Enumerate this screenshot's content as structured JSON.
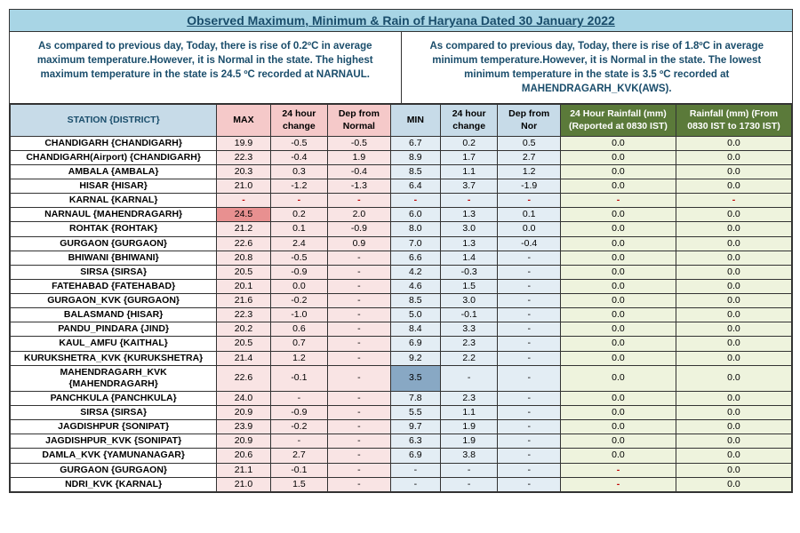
{
  "title": "Observed Maximum, Minimum & Rain of Haryana Dated 30 January 2022",
  "summary_left": "As compared to previous day, Today, there is rise of 0.2ºC in average maximum temperature.However, it is Normal in the state. The highest maximum temperature in the state is 24.5 ºC recorded at NARNAUL.",
  "summary_right": "As compared to previous day, Today, there is rise of 1.8ºC in average minimum temperature.However, it is Normal in the state. The lowest minimum temperature in the state is 3.5 ºC recorded at MAHENDRAGARH_KVK(AWS).",
  "headers": {
    "station": "STATION  {DISTRICT}",
    "max": "MAX",
    "max_chg": "24 hour change",
    "max_dep": "Dep from Normal",
    "min": "MIN",
    "min_chg": "24 hour change",
    "min_dep": "Dep from Nor",
    "rain1": "24 Hour Rainfall (mm) (Reported at 0830 IST)",
    "rain2": "Rainfall (mm) (From 0830 IST to 1730 IST)"
  },
  "highlight": {
    "max_row": 5,
    "min_row": 16
  },
  "rows": [
    {
      "station": "CHANDIGARH {CHANDIGARH}",
      "max": "19.9",
      "maxchg": "-0.5",
      "maxdep": "-0.5",
      "min": "6.7",
      "minchg": "0.2",
      "mindep": "0.5",
      "rain1": "0.0",
      "rain2": "0.0"
    },
    {
      "station": "CHANDIGARH(Airport) {CHANDIGARH}",
      "max": "22.3",
      "maxchg": "-0.4",
      "maxdep": "1.9",
      "min": "8.9",
      "minchg": "1.7",
      "mindep": "2.7",
      "rain1": "0.0",
      "rain2": "0.0"
    },
    {
      "station": "AMBALA {AMBALA}",
      "max": "20.3",
      "maxchg": "0.3",
      "maxdep": "-0.4",
      "min": "8.5",
      "minchg": "1.1",
      "mindep": "1.2",
      "rain1": "0.0",
      "rain2": "0.0"
    },
    {
      "station": "HISAR {HISAR}",
      "max": "21.0",
      "maxchg": "-1.2",
      "maxdep": "-1.3",
      "min": "6.4",
      "minchg": "3.7",
      "mindep": "-1.9",
      "rain1": "0.0",
      "rain2": "0.0"
    },
    {
      "station": "KARNAL {KARNAL}",
      "max": "-",
      "maxchg": "-",
      "maxdep": "-",
      "min": "-",
      "minchg": "-",
      "mindep": "-",
      "rain1": "-",
      "rain2": "-",
      "red": true
    },
    {
      "station": "NARNAUL {MAHENDRAGARH}",
      "max": "24.5",
      "maxchg": "0.2",
      "maxdep": "2.0",
      "min": "6.0",
      "minchg": "1.3",
      "mindep": "0.1",
      "rain1": "0.0",
      "rain2": "0.0"
    },
    {
      "station": "ROHTAK {ROHTAK}",
      "max": "21.2",
      "maxchg": "0.1",
      "maxdep": "-0.9",
      "min": "8.0",
      "minchg": "3.0",
      "mindep": "0.0",
      "rain1": "0.0",
      "rain2": "0.0"
    },
    {
      "station": "GURGAON {GURGAON}",
      "max": "22.6",
      "maxchg": "2.4",
      "maxdep": "0.9",
      "min": "7.0",
      "minchg": "1.3",
      "mindep": "-0.4",
      "rain1": "0.0",
      "rain2": "0.0"
    },
    {
      "station": "BHIWANI {BHIWANI}",
      "max": "20.8",
      "maxchg": "-0.5",
      "maxdep": "-",
      "min": "6.6",
      "minchg": "1.4",
      "mindep": "-",
      "rain1": "0.0",
      "rain2": "0.0"
    },
    {
      "station": "SIRSA {SIRSA}",
      "max": "20.5",
      "maxchg": "-0.9",
      "maxdep": "-",
      "min": "4.2",
      "minchg": "-0.3",
      "mindep": "-",
      "rain1": "0.0",
      "rain2": "0.0"
    },
    {
      "station": "FATEHABAD {FATEHABAD}",
      "max": "20.1",
      "maxchg": "0.0",
      "maxdep": "-",
      "min": "4.6",
      "minchg": "1.5",
      "mindep": "-",
      "rain1": "0.0",
      "rain2": "0.0"
    },
    {
      "station": "GURGAON_KVK {GURGAON}",
      "max": "21.6",
      "maxchg": "-0.2",
      "maxdep": "-",
      "min": "8.5",
      "minchg": "3.0",
      "mindep": "-",
      "rain1": "0.0",
      "rain2": "0.0"
    },
    {
      "station": "BALASMAND {HISAR}",
      "max": "22.3",
      "maxchg": "-1.0",
      "maxdep": "-",
      "min": "5.0",
      "minchg": "-0.1",
      "mindep": "-",
      "rain1": "0.0",
      "rain2": "0.0"
    },
    {
      "station": "PANDU_PINDARA {JIND}",
      "max": "20.2",
      "maxchg": "0.6",
      "maxdep": "-",
      "min": "8.4",
      "minchg": "3.3",
      "mindep": "-",
      "rain1": "0.0",
      "rain2": "0.0"
    },
    {
      "station": "KAUL_AMFU {KAITHAL}",
      "max": "20.5",
      "maxchg": "0.7",
      "maxdep": "-",
      "min": "6.9",
      "minchg": "2.3",
      "mindep": "-",
      "rain1": "0.0",
      "rain2": "0.0"
    },
    {
      "station": "KURUKSHETRA_KVK {KURUKSHETRA}",
      "max": "21.4",
      "maxchg": "1.2",
      "maxdep": "-",
      "min": "9.2",
      "minchg": "2.2",
      "mindep": "-",
      "rain1": "0.0",
      "rain2": "0.0"
    },
    {
      "station": "MAHENDRAGARH_KVK {MAHENDRAGARH}",
      "max": "22.6",
      "maxchg": "-0.1",
      "maxdep": "-",
      "min": "3.5",
      "minchg": "-",
      "mindep": "-",
      "rain1": "0.0",
      "rain2": "0.0"
    },
    {
      "station": "PANCHKULA {PANCHKULA}",
      "max": "24.0",
      "maxchg": "-",
      "maxdep": "-",
      "min": "7.8",
      "minchg": "2.3",
      "mindep": "-",
      "rain1": "0.0",
      "rain2": "0.0"
    },
    {
      "station": "SIRSA {SIRSA}",
      "max": "20.9",
      "maxchg": "-0.9",
      "maxdep": "-",
      "min": "5.5",
      "minchg": "1.1",
      "mindep": "-",
      "rain1": "0.0",
      "rain2": "0.0"
    },
    {
      "station": "JAGDISHPUR {SONIPAT}",
      "max": "23.9",
      "maxchg": "-0.2",
      "maxdep": "-",
      "min": "9.7",
      "minchg": "1.9",
      "mindep": "-",
      "rain1": "0.0",
      "rain2": "0.0"
    },
    {
      "station": "JAGDISHPUR_KVK {SONIPAT}",
      "max": "20.9",
      "maxchg": "-",
      "maxdep": "-",
      "min": "6.3",
      "minchg": "1.9",
      "mindep": "-",
      "rain1": "0.0",
      "rain2": "0.0"
    },
    {
      "station": "DAMLA_KVK {YAMUNANAGAR}",
      "max": "20.6",
      "maxchg": "2.7",
      "maxdep": "-",
      "min": "6.9",
      "minchg": "3.8",
      "mindep": "-",
      "rain1": "0.0",
      "rain2": "0.0"
    },
    {
      "station": "GURGAON {GURGAON}",
      "max": "21.1",
      "maxchg": "-0.1",
      "maxdep": "-",
      "min": "-",
      "minchg": "-",
      "mindep": "-",
      "rain1": "-",
      "rain2": "0.0",
      "rain1red": true
    },
    {
      "station": "NDRI_KVK {KARNAL}",
      "max": "21.0",
      "maxchg": "1.5",
      "maxdep": "-",
      "min": "-",
      "minchg": "-",
      "mindep": "-",
      "rain1": "-",
      "rain2": "0.0",
      "rain1red": true
    }
  ]
}
